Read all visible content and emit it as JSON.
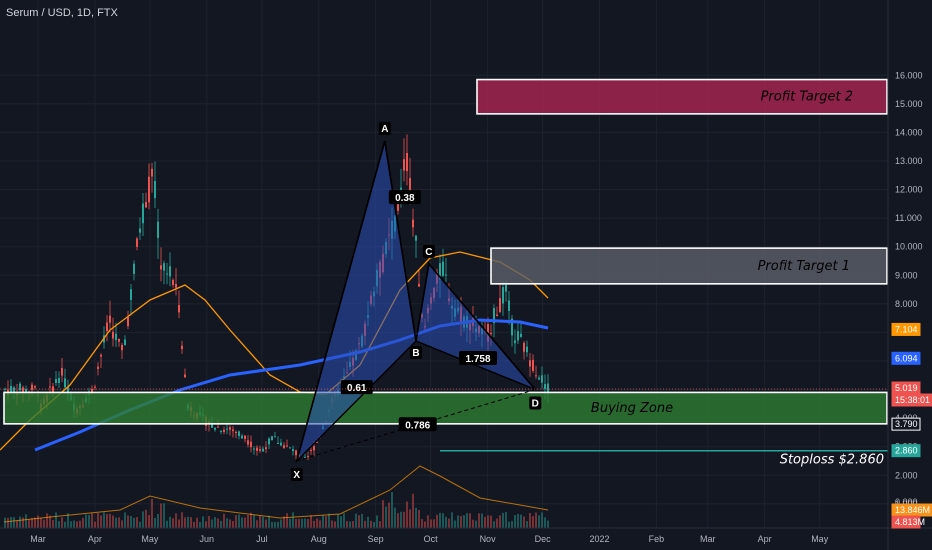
{
  "header": {
    "title": "Serum / USD, 1D, FTX"
  },
  "chart_data": {
    "type": "candlestick",
    "title": "Serum / USD, 1D, FTX",
    "colors": {
      "background": "#131722",
      "up": "#26a69a",
      "down": "#ef5350",
      "ma_long": "#2962ff",
      "ma_short": "#ff9800",
      "pattern_fill": "#2a4fb8",
      "buying_zone": "#2e7d32",
      "profit_target_2": "#a3244f",
      "profit_target_1": "#5d606b",
      "stoploss": "#26a69a"
    },
    "y_ticks": [
      "1.000",
      "2.000",
      "3.000",
      "4.000",
      "5.000",
      "6.000",
      "7.000",
      "8.000",
      "9.000",
      "10.000",
      "11.000",
      "12.000",
      "13.000",
      "14.000",
      "15.000",
      "16.000"
    ],
    "x_ticks": [
      "Mar",
      "Apr",
      "May",
      "Jun",
      "Jul",
      "Aug",
      "Sep",
      "Oct",
      "Nov",
      "Dec",
      "2022",
      "Feb",
      "Mar",
      "Apr",
      "May"
    ],
    "price_tags": [
      {
        "value": "7.104",
        "color": "#ff9800"
      },
      {
        "value": "6.094",
        "color": "#2962ff"
      },
      {
        "value": "5.019",
        "color": "#ef5350"
      },
      {
        "value": "15:38:01",
        "color": "#ef5350"
      },
      {
        "value": "3.790",
        "color": "#131722",
        "border": "#ffffff"
      },
      {
        "value": "2.860",
        "color": "#26a69a"
      },
      {
        "value": "13.846M",
        "color": "#f7931a"
      },
      {
        "value": "4.813M",
        "color": "#ef5350"
      }
    ],
    "volume_axis_label": "0.000",
    "harmonic_points": {
      "X": {
        "date": "Jul 20",
        "price": 2.5
      },
      "A": {
        "date": "Sep 06",
        "price": 13.7
      },
      "B": {
        "date": "Sep 23",
        "price": 6.7
      },
      "C": {
        "date": "Sep 30",
        "price": 9.4
      },
      "D": {
        "date": "Nov 27",
        "price": 5.0
      }
    },
    "ratios": [
      "0.38",
      "0.61",
      "1.758",
      "0.786"
    ],
    "zones": [
      {
        "label": "Profit Target 2",
        "top": 15.85,
        "bottom": 14.65
      },
      {
        "label": "Profit Target 1",
        "top": 9.95,
        "bottom": 8.7
      },
      {
        "label": "Buying Zone",
        "top": 4.9,
        "bottom": 3.8
      }
    ],
    "stoploss": {
      "label": "Stoploss $2.860",
      "price": 2.86
    }
  }
}
